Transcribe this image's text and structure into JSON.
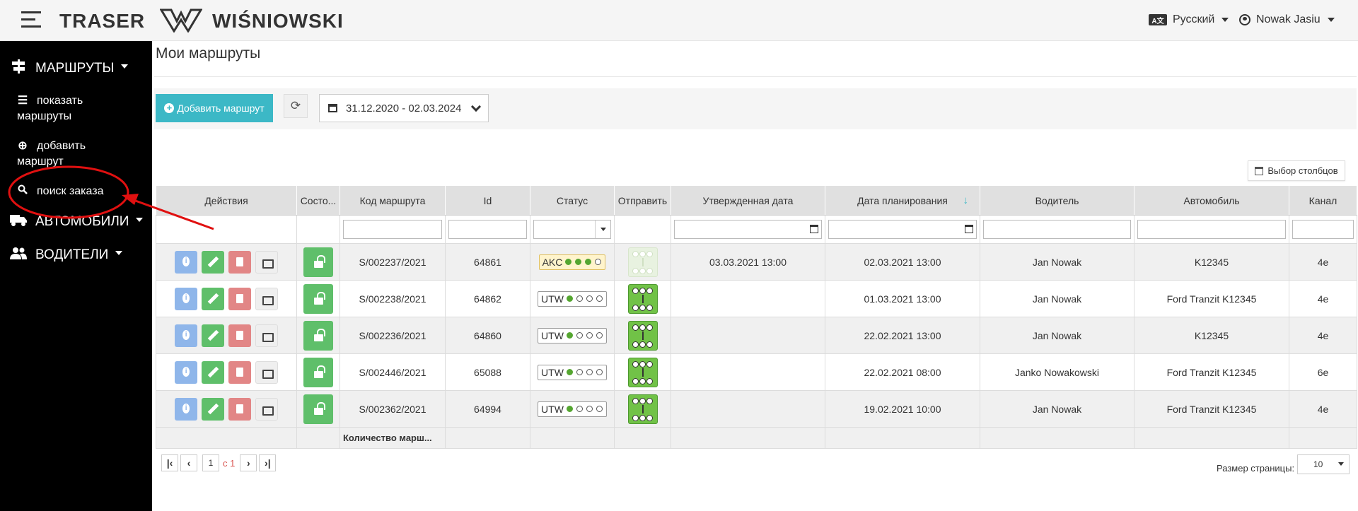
{
  "header": {
    "brand": "TRASER",
    "partner": "WIŚNIOWSKI",
    "language": "Русский",
    "user": "Nowak Jasiu"
  },
  "sidebar": {
    "sections": [
      {
        "label": "МАРШРУТЫ",
        "icon": "signpost-icon"
      },
      {
        "label": "АВТОМОБИЛИ",
        "icon": "truck-icon"
      },
      {
        "label": "ВОДИТЕЛИ",
        "icon": "users-icon"
      }
    ],
    "subitems": [
      {
        "label": "показать маршруты",
        "icon": "list-icon"
      },
      {
        "label": "добавить маршрут",
        "icon": "plus-circle-icon"
      },
      {
        "label": "поиск заказа",
        "icon": "search-icon"
      }
    ]
  },
  "page": {
    "title": "Мои маршруты",
    "add_button": "Добавить маршрут",
    "date_range": "31.12.2020 - 02.03.2024",
    "columns_button": "Выбор столбцов"
  },
  "grid": {
    "columns": [
      "Действия",
      "Состо...",
      "Код маршрута",
      "Id",
      "Статус",
      "Отправить",
      "Утвержденная дата",
      "Дата планирования",
      "Водитель",
      "Автомобиль",
      "Канал"
    ],
    "rows": [
      {
        "code": "S/002237/2021",
        "id": "64861",
        "status": "AKC",
        "status_dots": 3,
        "send_enabled": false,
        "approved": "03.03.2021 13:00",
        "planned": "02.03.2021 13:00",
        "driver": "Jan Nowak",
        "vehicle": "K12345",
        "channel": "4e"
      },
      {
        "code": "S/002238/2021",
        "id": "64862",
        "status": "UTW",
        "status_dots": 1,
        "send_enabled": true,
        "approved": "",
        "planned": "01.03.2021 13:00",
        "driver": "Jan Nowak",
        "vehicle": "Ford Tranzit K12345",
        "channel": "4e"
      },
      {
        "code": "S/002236/2021",
        "id": "64860",
        "status": "UTW",
        "status_dots": 1,
        "send_enabled": true,
        "approved": "",
        "planned": "22.02.2021 13:00",
        "driver": "Jan Nowak",
        "vehicle": "K12345",
        "channel": "4e"
      },
      {
        "code": "S/002446/2021",
        "id": "65088",
        "status": "UTW",
        "status_dots": 1,
        "send_enabled": true,
        "approved": "",
        "planned": "22.02.2021 08:00",
        "driver": "Janko Nowakowski",
        "vehicle": "Ford Tranzit K12345",
        "channel": "6e"
      },
      {
        "code": "S/002362/2021",
        "id": "64994",
        "status": "UTW",
        "status_dots": 1,
        "send_enabled": true,
        "approved": "",
        "planned": "19.02.2021 10:00",
        "driver": "Jan Nowak",
        "vehicle": "Ford Tranzit K12345",
        "channel": "4e"
      }
    ],
    "footer_label": "Количество марш..."
  },
  "pager": {
    "page": "1",
    "of_label": "с 1",
    "page_size_label": "Размер страницы:",
    "page_size": "10"
  },
  "colors": {
    "accent": "#3cb8c6",
    "sidebar_bg": "#000000",
    "annotation": "#e01010"
  }
}
